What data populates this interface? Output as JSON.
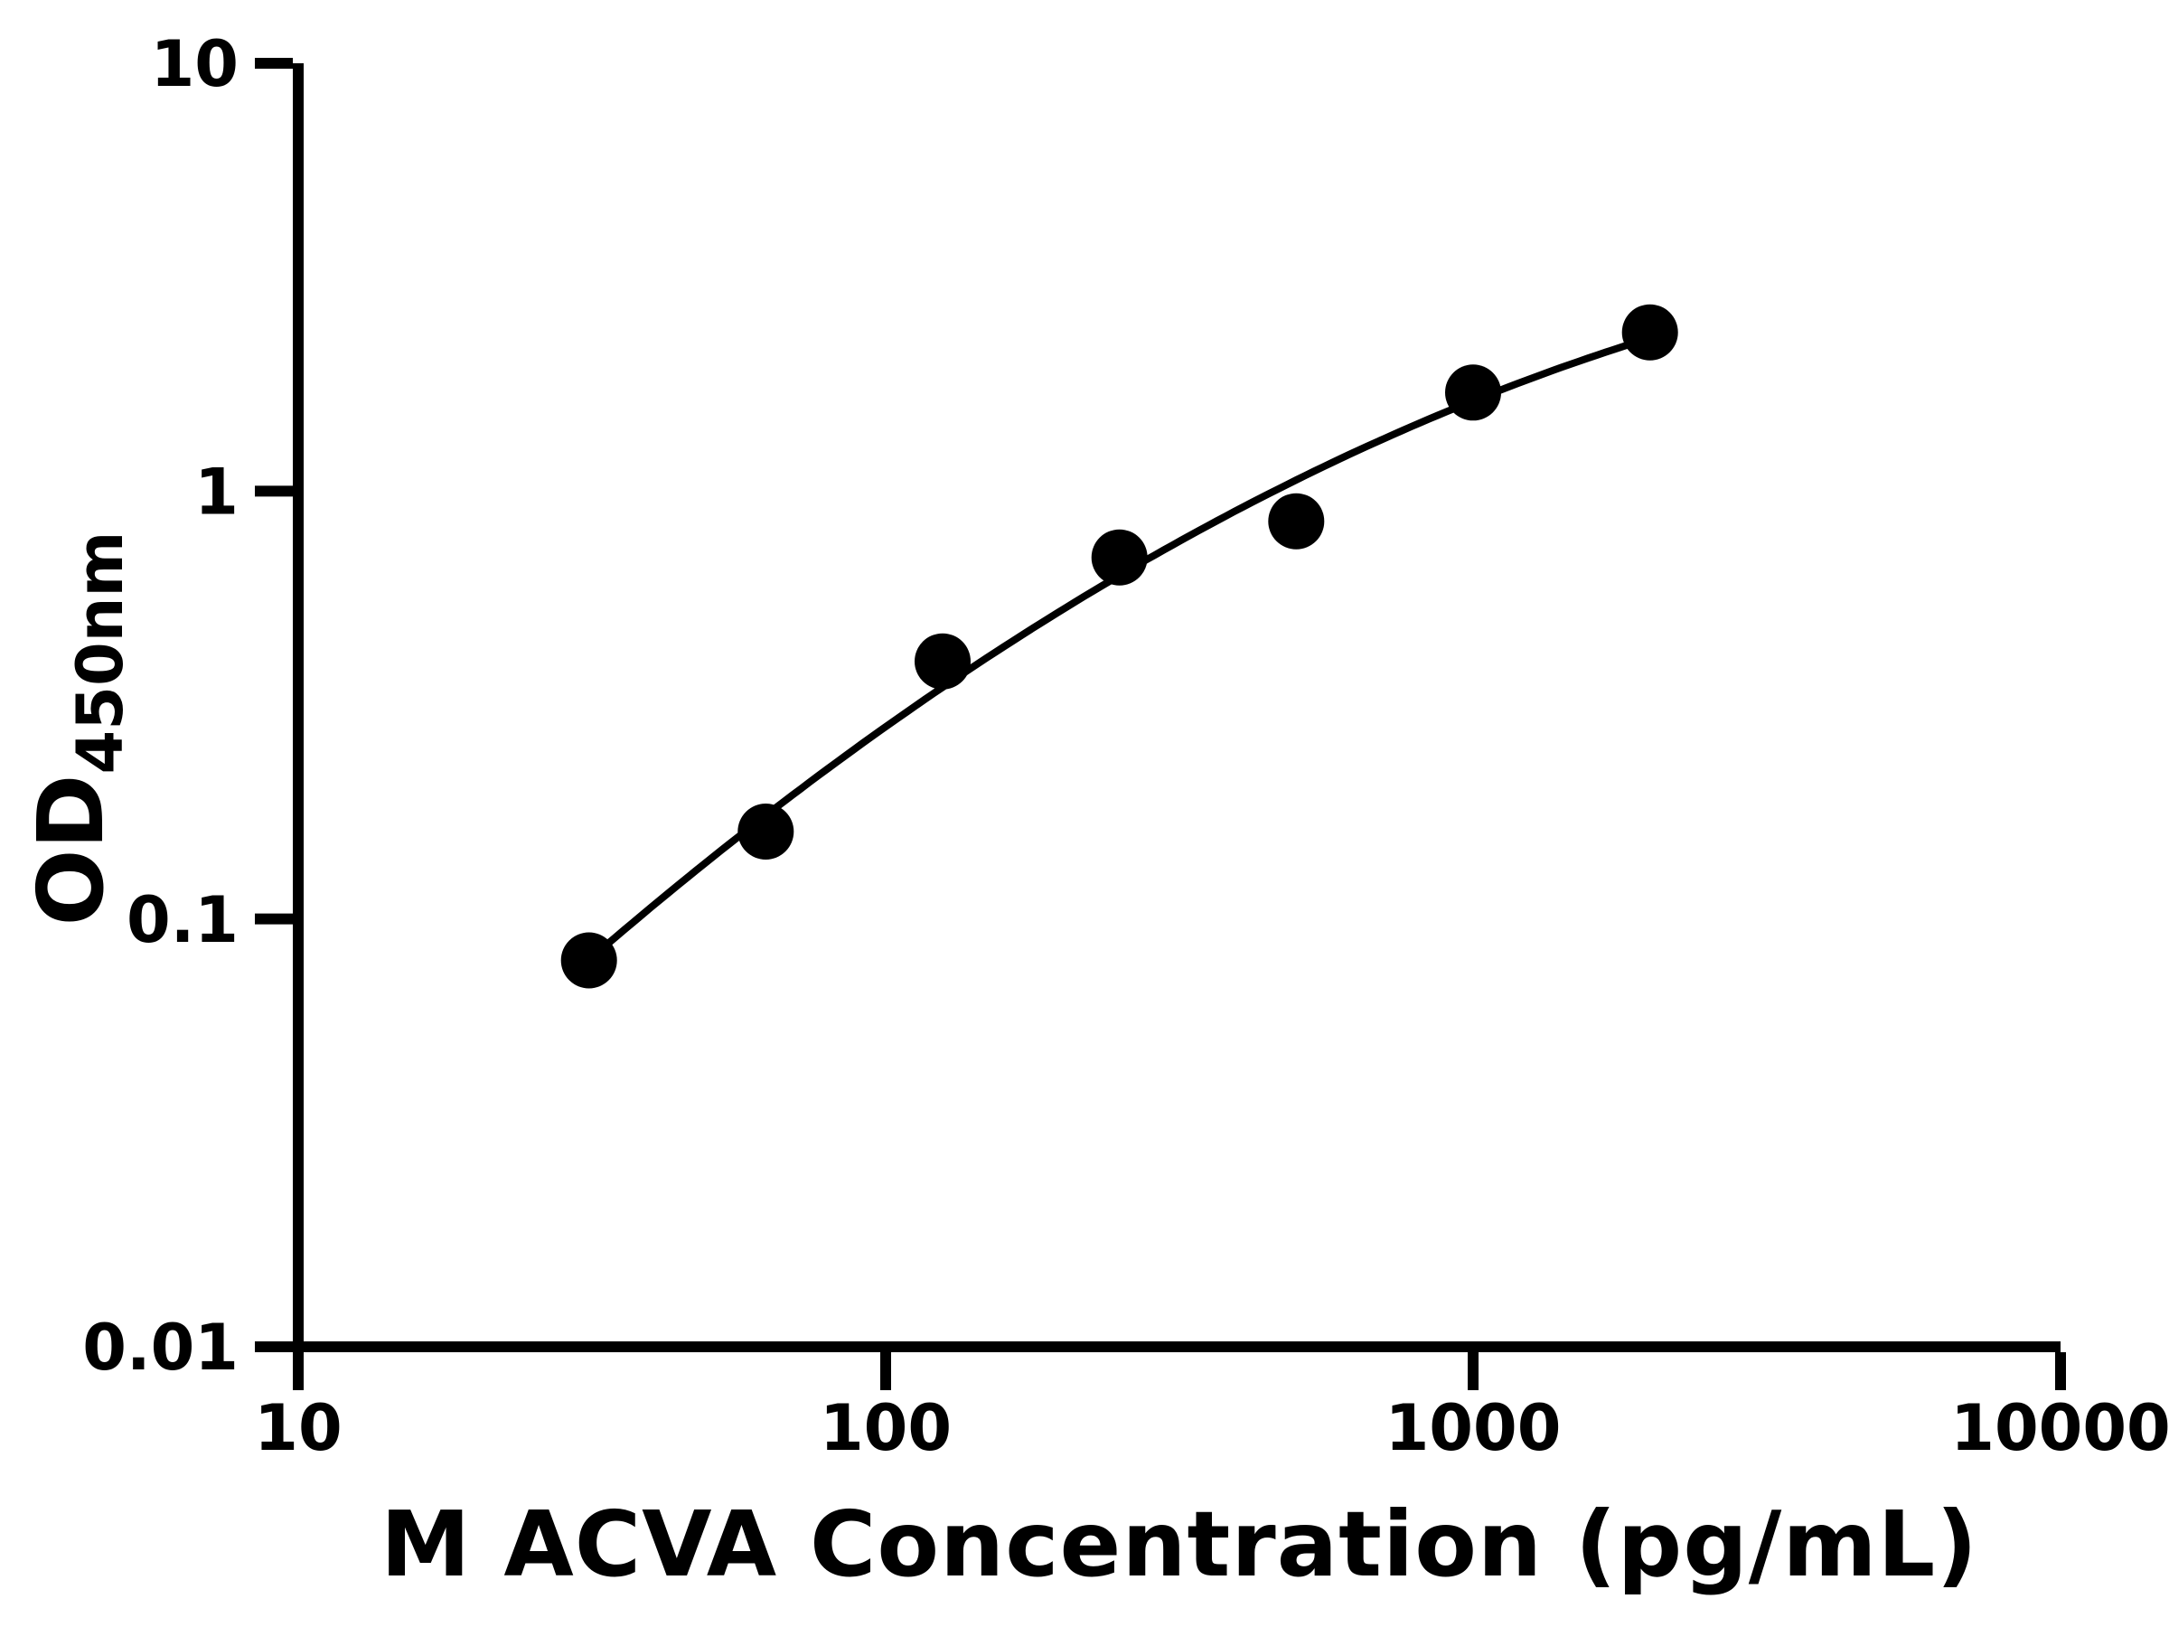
{
  "chart_data": {
    "type": "scatter",
    "title": "",
    "xlabel": "M ACVA Concentration (pg/mL)",
    "ylabel": "OD450nm",
    "ylabel_main": "OD",
    "ylabel_sub": "450nm",
    "x_scale": "log",
    "y_scale": "log",
    "xlim": [
      10,
      10000
    ],
    "ylim": [
      0.01,
      10
    ],
    "x_ticks": [
      10,
      100,
      1000,
      10000
    ],
    "y_ticks": [
      0.01,
      0.1,
      1,
      10
    ],
    "grid": false,
    "legend": "none",
    "background_color": "#ffffff",
    "axis_color": "#000000",
    "marker_color": "#000000",
    "curve_color": "#000000",
    "points": [
      {
        "x": 31.25,
        "y": 0.08
      },
      {
        "x": 62.5,
        "y": 0.16
      },
      {
        "x": 125,
        "y": 0.4
      },
      {
        "x": 250,
        "y": 0.7
      },
      {
        "x": 500,
        "y": 0.85
      },
      {
        "x": 1000,
        "y": 1.7
      },
      {
        "x": 2000,
        "y": 2.35
      }
    ]
  }
}
